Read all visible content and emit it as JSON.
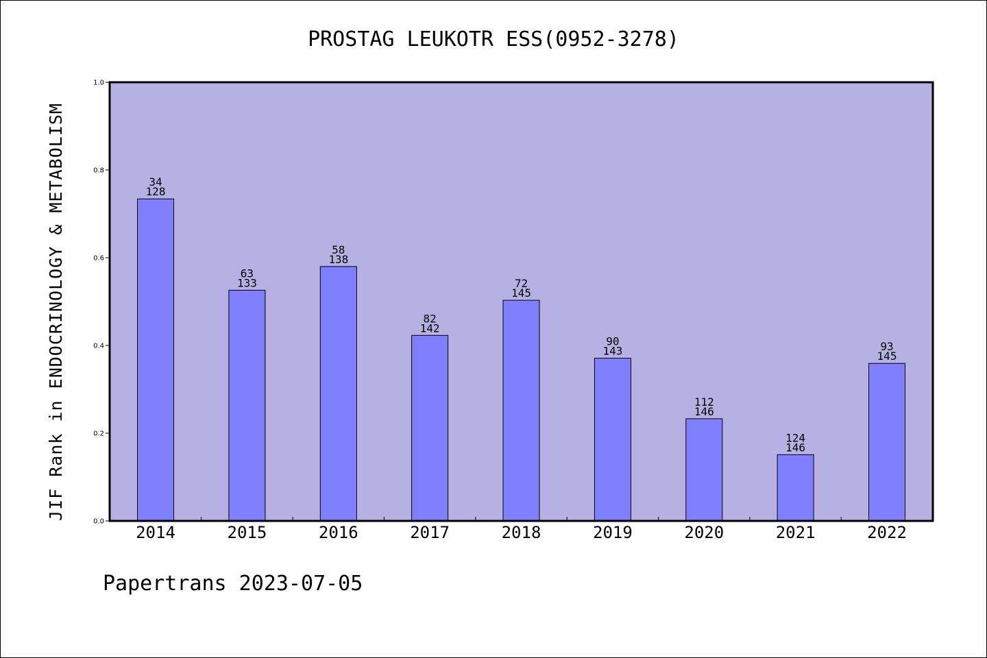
{
  "chart_data": {
    "type": "bar",
    "title": "PROSTAG LEUKOTR ESS(0952-3278)",
    "ylabel": "JIF Rank in ENDOCRINOLOGY & METABOLISM",
    "xlabel": "",
    "ylim": [
      0,
      1.0
    ],
    "yticks": [
      "0.0",
      "0.2",
      "0.4",
      "0.6",
      "0.8",
      "1.0"
    ],
    "grid": false,
    "categories": [
      "2014",
      "2015",
      "2016",
      "2017",
      "2018",
      "2019",
      "2020",
      "2021",
      "2022"
    ],
    "values": [
      0.734,
      0.526,
      0.58,
      0.423,
      0.503,
      0.371,
      0.233,
      0.151,
      0.359
    ],
    "rank": [
      "34",
      "63",
      "58",
      "82",
      "72",
      "90",
      "112",
      "124",
      "93"
    ],
    "total": [
      "128",
      "133",
      "138",
      "142",
      "145",
      "143",
      "146",
      "146",
      "145"
    ],
    "colors": {
      "plot_background": "#b6b0e3",
      "bar_fill": "#8080ff",
      "bar_stroke": "#000000",
      "axis": "#000000"
    }
  },
  "footer": {
    "text": "Papertrans 2023-07-05"
  }
}
